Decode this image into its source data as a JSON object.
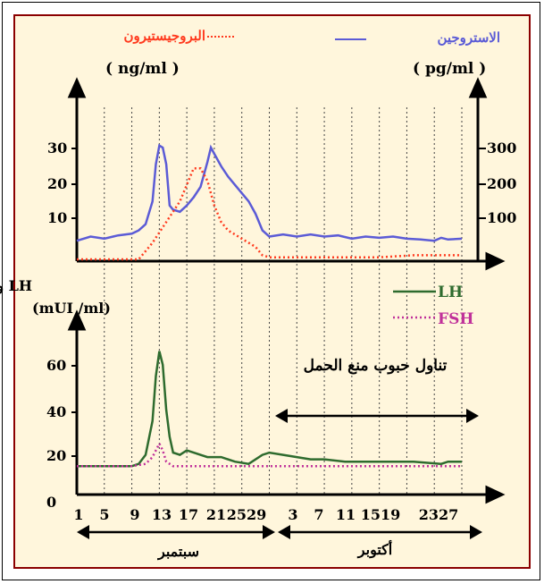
{
  "colors": {
    "background": "#fff6dc",
    "border": "#8b0000",
    "estrogen": "#5b5bd6",
    "progesterone": "#ff3b1f",
    "lh": "#2e6b2e",
    "fsh": "#c0309a",
    "axis": "#000000",
    "grid": "#444444"
  },
  "chart_data": [
    {
      "type": "line",
      "title": "",
      "legend": [
        {
          "label": "البروجيستيرون",
          "color": "#ff3b1f",
          "style": "dotted"
        },
        {
          "label": "الاستروجين",
          "color": "#5b5bd6",
          "style": "solid"
        }
      ],
      "left_axis": {
        "unit": "( ng/ml )",
        "ticks": [
          10,
          20,
          30
        ],
        "range": [
          0,
          35
        ]
      },
      "right_axis": {
        "unit": "( pg/ml )",
        "ticks": [
          100,
          200,
          300
        ],
        "range": [
          0,
          350
        ]
      },
      "series": [
        {
          "name": "الاستروجين",
          "axis": "right",
          "x": [
            1,
            3,
            5,
            7,
            9,
            10,
            11,
            12,
            12.5,
            13,
            13.5,
            14,
            14.5,
            15,
            16,
            17,
            18,
            19,
            20,
            20.5,
            21,
            22,
            23,
            24,
            25,
            26,
            27,
            28,
            29,
            31,
            33,
            35,
            37,
            39,
            41,
            43,
            45,
            47,
            49,
            51,
            53,
            54,
            55,
            57
          ],
          "values": [
            45,
            55,
            50,
            58,
            62,
            70,
            85,
            140,
            230,
            275,
            270,
            230,
            130,
            120,
            115,
            130,
            150,
            175,
            235,
            270,
            255,
            225,
            200,
            180,
            160,
            140,
            110,
            70,
            55,
            60,
            55,
            60,
            55,
            58,
            50,
            55,
            52,
            55,
            50,
            48,
            45,
            52,
            48,
            50
          ]
        },
        {
          "name": "البروجيستيرون",
          "axis": "left",
          "x": [
            1,
            10,
            12,
            14,
            16,
            17,
            18,
            19,
            20,
            21,
            22,
            23,
            24,
            25,
            26,
            27,
            28,
            29,
            31,
            35,
            40,
            45,
            50,
            57
          ],
          "values": [
            0,
            0,
            4,
            9,
            14,
            18,
            22,
            22,
            19,
            13,
            9,
            7,
            6,
            5,
            4,
            3,
            1,
            0.5,
            0.5,
            0.5,
            0.5,
            0.5,
            1,
            1
          ]
        }
      ]
    },
    {
      "type": "line",
      "title": "",
      "legend": [
        {
          "label": "LH",
          "color": "#2e6b2e",
          "style": "solid"
        },
        {
          "label": "FSH",
          "color": "#c0309a",
          "style": "dotted"
        }
      ],
      "left_axis": {
        "title": "LH و FSH",
        "unit": "(mUI /ml)",
        "ticks": [
          0,
          20,
          40,
          60
        ],
        "range": [
          0,
          75
        ]
      },
      "x_ticks": [
        "1",
        "5",
        "9",
        "13",
        "17",
        "21",
        "2529",
        "3",
        "7",
        "11",
        "1519",
        "2327"
      ],
      "annotation": "تناول حبوب منع الحمل",
      "months": [
        "سبتمبر",
        "أكتوبر"
      ],
      "series": [
        {
          "name": "LH",
          "x": [
            1,
            3,
            5,
            7,
            9,
            10,
            11,
            12,
            12.5,
            13,
            13.5,
            14,
            14.5,
            15,
            16,
            17,
            18,
            20,
            22,
            24,
            26,
            28,
            29,
            31,
            33,
            35,
            37,
            40,
            45,
            50,
            54,
            55,
            57
          ],
          "values": [
            15,
            15,
            15,
            15,
            15,
            16,
            20,
            35,
            55,
            66,
            60,
            40,
            28,
            21,
            20,
            22,
            21,
            19,
            19,
            17,
            16,
            20,
            21,
            20,
            19,
            18,
            18,
            17,
            17,
            17,
            16,
            17,
            17
          ]
        },
        {
          "name": "FSH",
          "x": [
            1,
            5,
            9,
            11,
            12,
            12.5,
            13,
            13.5,
            14,
            15,
            17,
            21,
            25,
            29,
            35,
            41,
            47,
            54,
            57
          ],
          "values": [
            15,
            15,
            15,
            16,
            19,
            22,
            25,
            22,
            17,
            15,
            15,
            15,
            15,
            15,
            15,
            15,
            15,
            15,
            15
          ]
        }
      ]
    }
  ]
}
